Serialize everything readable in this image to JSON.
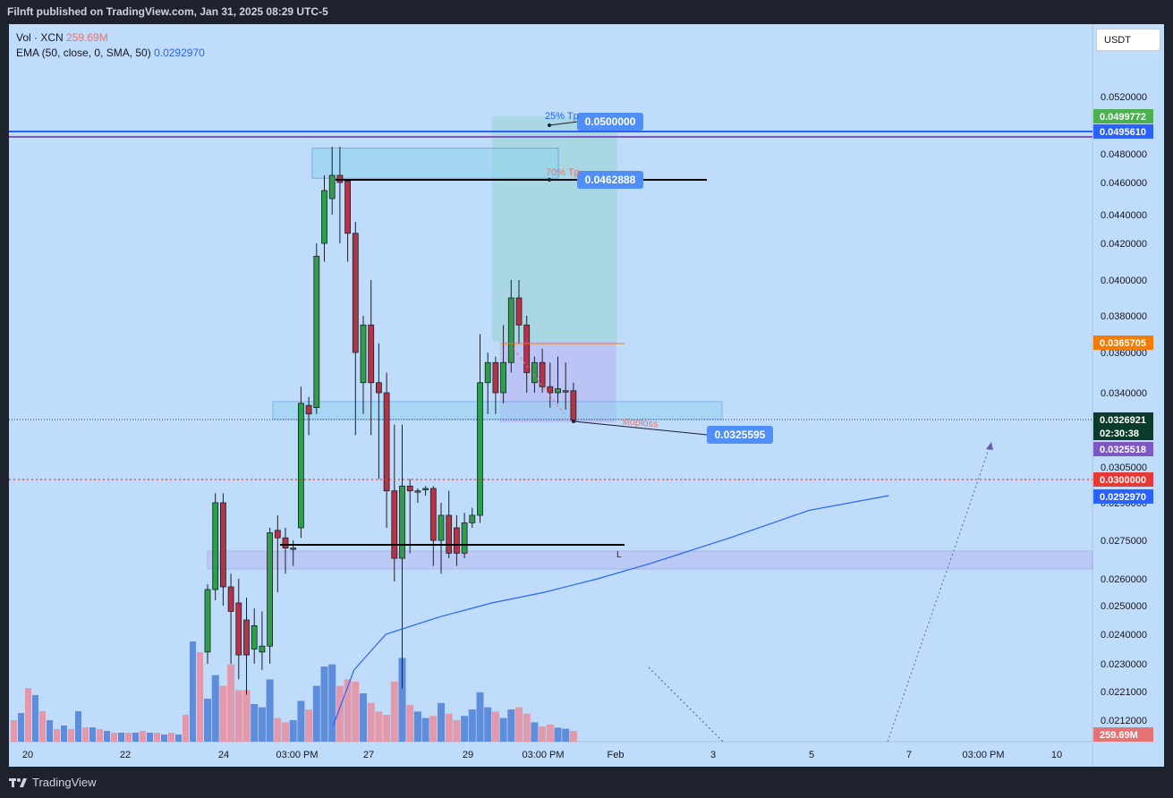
{
  "header": {
    "publisher_line": "Filnft published on TradingView.com, Jan 31, 2025 08:29 UTC-5"
  },
  "footer": {
    "brand": "TradingView"
  },
  "legend": {
    "vol_label": "Vol · XCN",
    "vol_value": "259.69M",
    "ema_label": "EMA (50, close, 0, SMA, 50)",
    "ema_value": "0.0292970"
  },
  "currency_button": "USDT",
  "colors": {
    "background": "#bfdcfb",
    "up": "#2e9e4a",
    "down": "#b23447",
    "vol_up": "#4c7fd6",
    "vol_down": "#e88d9c",
    "ema": "#2962ff"
  },
  "chart_data": {
    "type": "candlestick",
    "symbol": "XCN / USDT",
    "ylim": [
      0.0205,
      0.0532
    ],
    "x_ticks": [
      "20",
      "22",
      "24",
      "03:00 PM",
      "27",
      "29",
      "03:00 PM",
      "Feb",
      "3",
      "5",
      "7",
      "03:00 PM",
      "10"
    ],
    "y_ticks": [
      "0.0520000",
      "0.0480000",
      "0.0460000",
      "0.0440000",
      "0.0420000",
      "0.0400000",
      "0.0380000",
      "0.0360000",
      "0.0340000",
      "0.0305000",
      "0.0290000",
      "0.0275000",
      "0.0260000",
      "0.0250000",
      "0.0240000",
      "0.0230000",
      "0.0221000",
      "0.0212000"
    ],
    "candles": [
      [
        0.0234,
        0.0256,
        0.023,
        0.0258
      ],
      [
        0.0256,
        0.029,
        0.0252,
        0.0294
      ],
      [
        0.029,
        0.0257,
        0.025,
        0.0294
      ],
      [
        0.0257,
        0.0248,
        0.023,
        0.0262
      ],
      [
        0.0251,
        0.0233,
        0.0225,
        0.026
      ],
      [
        0.0245,
        0.0233,
        0.022,
        0.0253
      ],
      [
        0.0235,
        0.0243,
        0.023,
        0.0249
      ],
      [
        0.0234,
        0.0236,
        0.0228,
        0.0248
      ],
      [
        0.0236,
        0.0278,
        0.023,
        0.028
      ],
      [
        0.0279,
        0.0276,
        0.0255,
        0.0285
      ],
      [
        0.0276,
        0.0272,
        0.0262,
        0.028
      ],
      [
        0.0272,
        0.0272,
        0.0265,
        0.0275
      ],
      [
        0.028,
        0.0335,
        0.0276,
        0.0343
      ],
      [
        0.0334,
        0.033,
        0.032,
        0.0338
      ],
      [
        0.0333,
        0.0413,
        0.033,
        0.042
      ],
      [
        0.042,
        0.0455,
        0.041,
        0.0465
      ],
      [
        0.045,
        0.0465,
        0.044,
        0.0485
      ],
      [
        0.0465,
        0.046,
        0.042,
        0.0485
      ],
      [
        0.0461,
        0.0427,
        0.041,
        0.0462
      ],
      [
        0.0427,
        0.036,
        0.032,
        0.0435
      ],
      [
        0.0345,
        0.0375,
        0.033,
        0.038
      ],
      [
        0.0375,
        0.0345,
        0.032,
        0.04
      ],
      [
        0.0345,
        0.034,
        0.03,
        0.0365
      ],
      [
        0.034,
        0.0295,
        0.028,
        0.035
      ],
      [
        0.0295,
        0.0268,
        0.0259,
        0.0325
      ],
      [
        0.0268,
        0.0297,
        0.0222,
        0.0325
      ],
      [
        0.0297,
        0.0295,
        0.027,
        0.03
      ],
      [
        0.0295,
        0.0295,
        0.029,
        0.0296
      ],
      [
        0.0296,
        0.0296,
        0.0293,
        0.0297
      ],
      [
        0.0296,
        0.0275,
        0.0265,
        0.0297
      ],
      [
        0.0275,
        0.0285,
        0.0262,
        0.029
      ],
      [
        0.0285,
        0.027,
        0.0268,
        0.0295
      ],
      [
        0.028,
        0.027,
        0.0265,
        0.0285
      ],
      [
        0.027,
        0.0282,
        0.0268,
        0.0286
      ],
      [
        0.0282,
        0.0285,
        0.028,
        0.0288
      ],
      [
        0.0285,
        0.0345,
        0.0282,
        0.037
      ],
      [
        0.0345,
        0.0355,
        0.033,
        0.036
      ],
      [
        0.0355,
        0.034,
        0.033,
        0.0358
      ],
      [
        0.034,
        0.0355,
        0.0335,
        0.0375
      ],
      [
        0.0355,
        0.039,
        0.035,
        0.04
      ],
      [
        0.039,
        0.0375,
        0.0365,
        0.04
      ],
      [
        0.0375,
        0.035,
        0.034,
        0.038
      ],
      [
        0.0345,
        0.0355,
        0.034,
        0.0358
      ],
      [
        0.0355,
        0.0343,
        0.034,
        0.0362
      ],
      [
        0.0343,
        0.034,
        0.0333,
        0.0355
      ],
      [
        0.034,
        0.0342,
        0.0335,
        0.0358
      ],
      [
        0.0341,
        0.0341,
        0.0332,
        0.0355
      ],
      [
        0.0341,
        0.0327,
        0.0326,
        0.0345
      ]
    ],
    "volume_scale_max": 100,
    "volume": [
      40,
      62,
      52,
      72,
      48,
      48,
      35,
      32,
      58,
      22,
      18,
      20,
      38,
      30,
      52,
      70,
      72,
      52,
      58,
      56,
      45,
      36,
      28,
      25,
      56,
      78,
      34,
      28,
      22,
      24,
      36,
      26,
      20,
      24,
      30,
      46,
      32,
      28,
      22,
      30,
      32,
      26,
      18,
      14,
      16,
      13,
      12,
      10
    ],
    "ema_points": [
      [
        40,
        0.021
      ],
      [
        40.8,
        0.0228
      ],
      [
        42,
        0.024
      ],
      [
        44,
        0.0246
      ],
      [
        46,
        0.0251
      ],
      [
        48,
        0.0255
      ],
      [
        50,
        0.026
      ],
      [
        52,
        0.0266
      ],
      [
        55,
        0.0276
      ],
      [
        58,
        0.0287
      ],
      [
        61,
        0.0293
      ]
    ],
    "price_labels": [
      {
        "label": "0.0499772",
        "color": "#4caf50"
      },
      {
        "label": "0.0495610",
        "color": "#2962ff"
      },
      {
        "label": "0.0365705",
        "color": "#f57c00"
      },
      {
        "label": "0.0326921",
        "color": "#0b3b2a"
      },
      {
        "label": "02:30:38",
        "color": "#0b3b2a"
      },
      {
        "label": "0.0325518",
        "color": "#7e57c2"
      },
      {
        "label": "0.0300000",
        "color": "#e53935"
      },
      {
        "label": "0.0292970",
        "color": "#2962ff"
      },
      {
        "label": "259.69M",
        "color": "#e57373"
      }
    ],
    "annotations": {
      "tp1_label": "25% Tp",
      "tp1_price": "0.0500000",
      "tp2_label": "70% Tp",
      "tp2_price": "0.0462888",
      "stoploss_label": "stoploss",
      "stoploss_price": "0.0325595",
      "low_marker": "L"
    }
  }
}
